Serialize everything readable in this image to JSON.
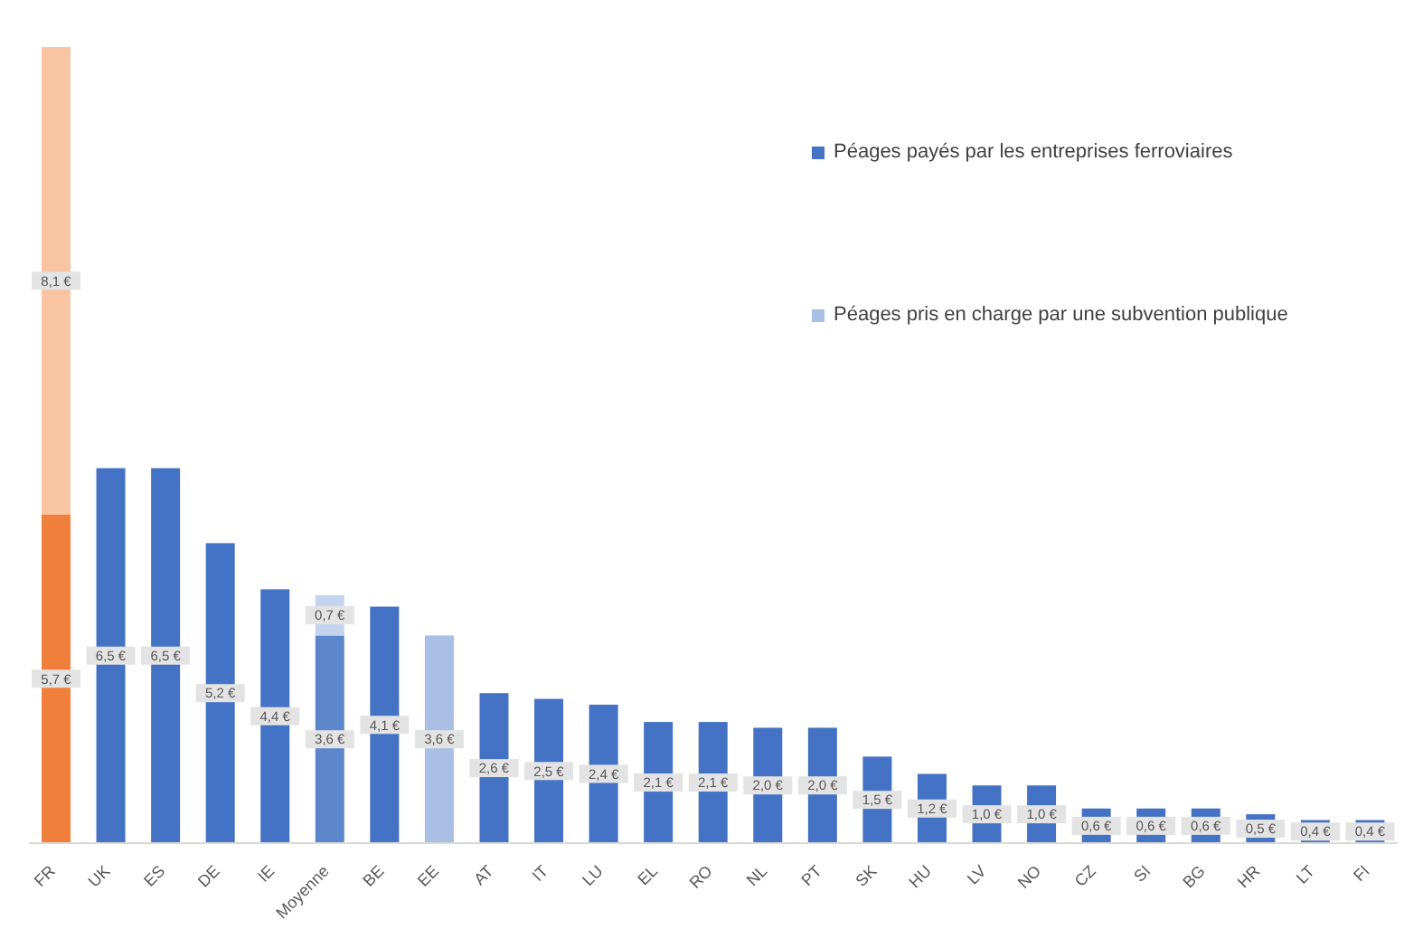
{
  "chart_data": {
    "type": "bar",
    "stacked": true,
    "data_labels": true,
    "legend": "top right",
    "grid": false,
    "tick_labels": "x",
    "categories": [
      "FR",
      "UK",
      "ES",
      "DE",
      "IE",
      "Moyenne",
      "BE",
      "EE",
      "AT",
      "IT",
      "LU",
      "EL",
      "RO",
      "NL",
      "PT",
      "SK",
      "HU",
      "LV",
      "NO",
      "CZ",
      "SI",
      "BG",
      "HR",
      "LT",
      "FI"
    ],
    "series": [
      {
        "name": "Péages payés par les entreprises ferroviaires",
        "color": "#4472c4",
        "colors": [
          "#f07f3c",
          "#4472c4",
          "#4472c4",
          "#4472c4",
          "#4472c4",
          "#5b86cc",
          "#4472c4",
          null,
          "#4472c4",
          "#4472c4",
          "#4472c4",
          "#4472c4",
          "#4472c4",
          "#4472c4",
          "#4472c4",
          "#4472c4",
          "#4472c4",
          "#4472c4",
          "#4472c4",
          "#4472c4",
          "#4472c4",
          "#4472c4",
          "#4472c4",
          "#4472c4",
          "#4472c4"
        ],
        "values": [
          5.7,
          6.5,
          6.5,
          5.2,
          4.4,
          3.6,
          4.1,
          null,
          2.6,
          2.5,
          2.4,
          2.1,
          2.1,
          2.0,
          2.0,
          1.5,
          1.2,
          1.0,
          1.0,
          0.6,
          0.6,
          0.6,
          0.5,
          0.4,
          0.4
        ],
        "value_labels": [
          "5,7 €",
          "6,5 €",
          "6,5 €",
          "5,2 €",
          "4,4 €",
          "3,6 €",
          "4,1 €",
          null,
          "2,6 €",
          "2,5 €",
          "2,4 €",
          "2,1 €",
          "2,1 €",
          "2,0 €",
          "2,0 €",
          "1,5 €",
          "1,2 €",
          "1,0 €",
          "1,0 €",
          "0,6 €",
          "0,6 €",
          "0,6 €",
          "0,5 €",
          "0,4 €",
          "0,4 €"
        ]
      },
      {
        "name": "Péages pris en charge par une subvention publique",
        "color": "#a9c0e4",
        "colors": [
          "#f8c4a2",
          null,
          null,
          null,
          null,
          "#c5d4ee",
          null,
          "#a9c0e4",
          null,
          null,
          null,
          null,
          null,
          null,
          null,
          null,
          null,
          null,
          null,
          null,
          null,
          null,
          null,
          null,
          null
        ],
        "values": [
          8.1,
          null,
          null,
          null,
          null,
          0.7,
          null,
          3.6,
          null,
          null,
          null,
          null,
          null,
          null,
          null,
          null,
          null,
          null,
          null,
          null,
          null,
          null,
          null,
          null,
          null
        ],
        "value_labels": [
          "8,1 €",
          null,
          null,
          null,
          null,
          "0,7 €",
          null,
          "3,6 €",
          null,
          null,
          null,
          null,
          null,
          null,
          null,
          null,
          null,
          null,
          null,
          null,
          null,
          null,
          null,
          null,
          null
        ]
      }
    ]
  }
}
